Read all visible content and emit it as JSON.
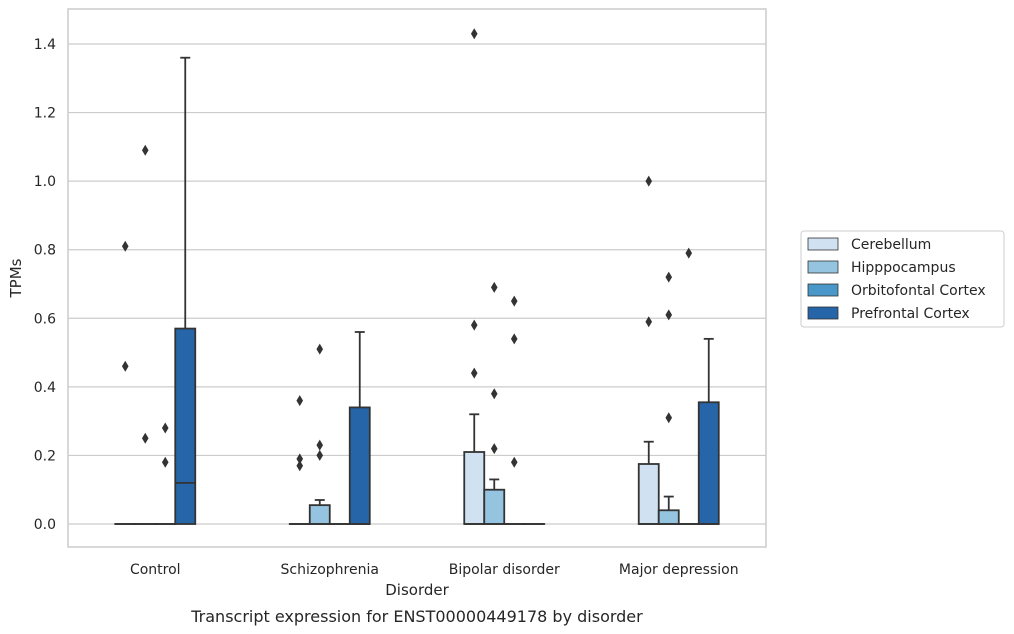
{
  "chart_data": {
    "type": "box",
    "title": "",
    "caption": "Transcript expression for ENST00000449178 by disorder",
    "xlabel": "Disorder",
    "ylabel": "TPMs",
    "ylim": [
      -0.07,
      1.5
    ],
    "yticks": [
      0.0,
      0.2,
      0.4,
      0.6,
      0.8,
      1.0,
      1.2,
      1.4
    ],
    "ytick_labels": [
      "0.0",
      "0.2",
      "0.4",
      "0.6",
      "0.8",
      "1.0",
      "1.2",
      "1.4"
    ],
    "grid": true,
    "legend_position": "right",
    "categories": [
      "Control",
      "Schizophrenia",
      "Bipolar disorder",
      "Major depression"
    ],
    "series": [
      {
        "name": "Cerebellum",
        "color": "#d0e1f2",
        "boxes": [
          {
            "q1": 0,
            "median": 0,
            "q3": 0,
            "whisker_low": 0,
            "whisker_high": 0,
            "outliers": [
              0.81,
              0.46
            ]
          },
          {
            "q1": 0,
            "median": 0,
            "q3": 0,
            "whisker_low": 0,
            "whisker_high": 0,
            "outliers": [
              0.36,
              0.19,
              0.17
            ]
          },
          {
            "q1": 0,
            "median": 0,
            "q3": 0.21,
            "whisker_low": 0,
            "whisker_high": 0.32,
            "outliers": [
              1.43,
              0.58,
              0.44
            ]
          },
          {
            "q1": 0,
            "median": 0,
            "q3": 0.175,
            "whisker_low": 0,
            "whisker_high": 0.24,
            "outliers": [
              1.0,
              0.59
            ]
          }
        ]
      },
      {
        "name": "Hipppocampus",
        "color": "#94c4df",
        "boxes": [
          {
            "q1": 0,
            "median": 0,
            "q3": 0,
            "whisker_low": 0,
            "whisker_high": 0,
            "outliers": [
              1.09,
              0.25
            ]
          },
          {
            "q1": 0,
            "median": 0,
            "q3": 0.055,
            "whisker_low": 0,
            "whisker_high": 0.07,
            "outliers": [
              0.51,
              0.23,
              0.2
            ]
          },
          {
            "q1": 0,
            "median": 0,
            "q3": 0.1,
            "whisker_low": 0,
            "whisker_high": 0.13,
            "outliers": [
              0.69,
              0.38,
              0.22
            ]
          },
          {
            "q1": 0,
            "median": 0,
            "q3": 0.04,
            "whisker_low": 0,
            "whisker_high": 0.08,
            "outliers": [
              0.72,
              0.61,
              0.31
            ]
          }
        ]
      },
      {
        "name": "Orbitofontal Cortex",
        "color": "#4a98c9",
        "boxes": [
          {
            "q1": 0,
            "median": 0,
            "q3": 0,
            "whisker_low": 0,
            "whisker_high": 0,
            "outliers": [
              0.28,
              0.18
            ]
          },
          {
            "q1": 0,
            "median": 0,
            "q3": 0,
            "whisker_low": 0,
            "whisker_high": 0,
            "outliers": []
          },
          {
            "q1": 0,
            "median": 0,
            "q3": 0,
            "whisker_low": 0,
            "whisker_high": 0,
            "outliers": [
              0.65,
              0.54,
              0.18
            ]
          },
          {
            "q1": 0,
            "median": 0,
            "q3": 0,
            "whisker_low": 0,
            "whisker_high": 0,
            "outliers": [
              0.79
            ]
          }
        ]
      },
      {
        "name": "Prefrontal Cortex",
        "color": "#2565a8",
        "boxes": [
          {
            "q1": 0,
            "median": 0.12,
            "q3": 0.57,
            "whisker_low": 0,
            "whisker_high": 1.36,
            "outliers": []
          },
          {
            "q1": 0,
            "median": 0,
            "q3": 0.34,
            "whisker_low": 0,
            "whisker_high": 0.56,
            "outliers": []
          },
          {
            "q1": 0,
            "median": 0,
            "q3": 0,
            "whisker_low": 0,
            "whisker_high": 0,
            "outliers": []
          },
          {
            "q1": 0,
            "median": 0,
            "q3": 0.355,
            "whisker_low": 0,
            "whisker_high": 0.54,
            "outliers": []
          }
        ]
      }
    ]
  }
}
